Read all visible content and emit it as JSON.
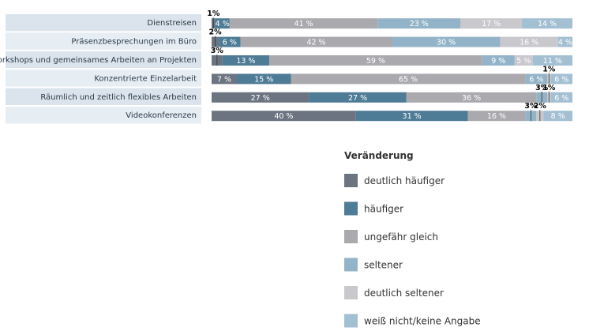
{
  "chart_data": {
    "type": "bar",
    "orientation": "horizontal",
    "stacked": true,
    "value_format": "percent",
    "categories": [
      "Dienstreisen",
      "Präsenzbesprechungen im Büro",
      "Workshops und gemeinsames Arbeiten an Projekten",
      "Konzentrierte Einzelarbeit",
      "Räumlich und zeitlich flexibles Arbeiten",
      "Videokonferenzen"
    ],
    "series": [
      {
        "name": "deutlich häufiger",
        "color": "#6b7480",
        "values": [
          1,
          2,
          3,
          7,
          27,
          40
        ]
      },
      {
        "name": "häufiger",
        "color": "#4e7b95",
        "values": [
          4,
          6,
          13,
          15,
          27,
          31
        ]
      },
      {
        "name": "ungefähr gleich",
        "color": "#a9a9ae",
        "values": [
          41,
          42,
          59,
          65,
          36,
          16
        ]
      },
      {
        "name": "seltener",
        "color": "#93b4c8",
        "values": [
          23,
          30,
          9,
          6,
          3,
          3
        ]
      },
      {
        "name": "deutlich seltener",
        "color": "#c8c8cd",
        "values": [
          17,
          16,
          5,
          1,
          1,
          2
        ]
      },
      {
        "name": "weiß nicht/keine Angabe",
        "color": "#a3bfd2",
        "values": [
          14,
          4,
          11,
          6,
          6,
          8
        ]
      }
    ],
    "legend": {
      "title": "Veränderung",
      "placement": "bottom-right"
    },
    "label_suffix": " %"
  }
}
